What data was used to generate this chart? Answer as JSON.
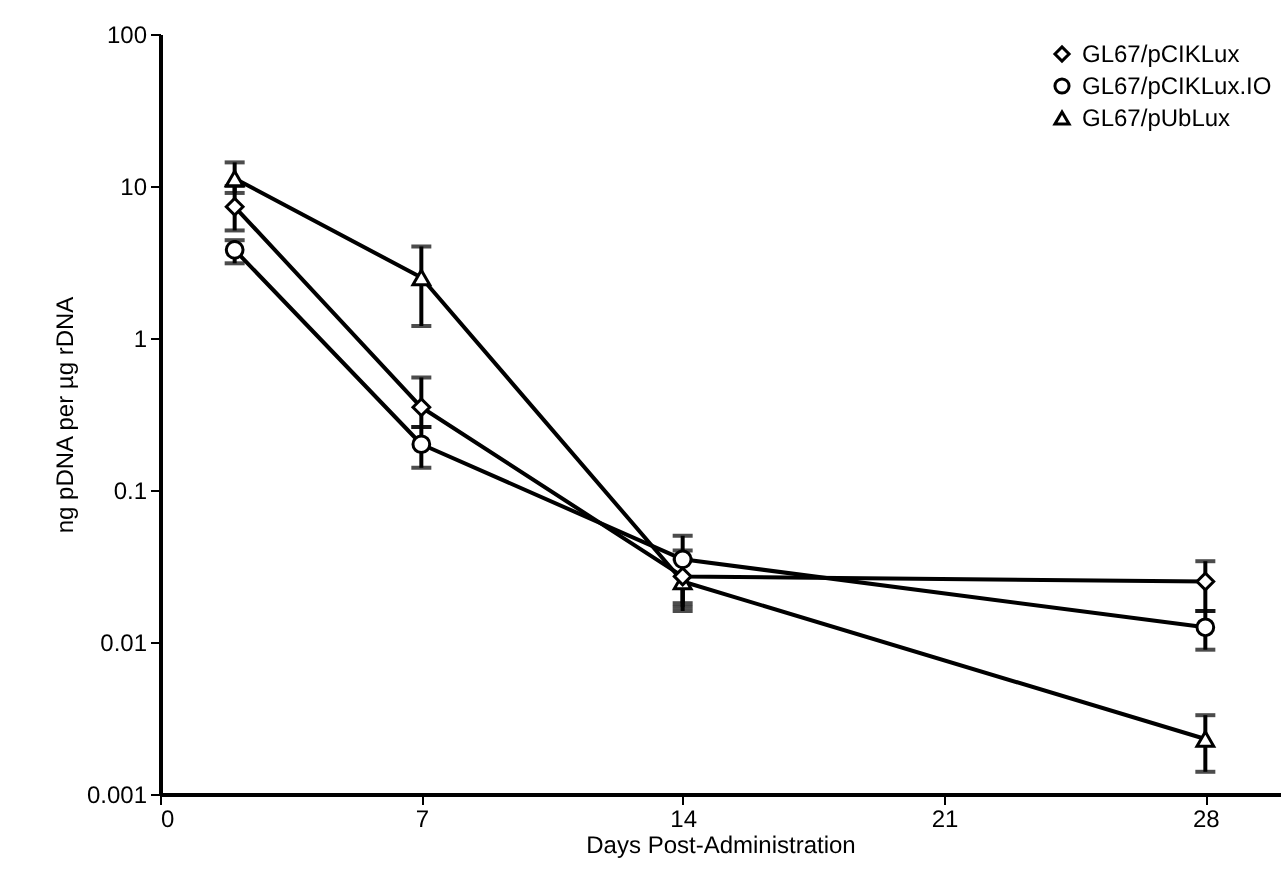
{
  "chart_data": {
    "type": "line",
    "xlabel": "Days Post-Administration",
    "ylabel": "ng pDNA per µg rDNA",
    "x": [
      2,
      7,
      14,
      28
    ],
    "xlim": [
      0,
      30
    ],
    "xticks": [
      0,
      7,
      14,
      21,
      28
    ],
    "ylim": [
      0.001,
      100
    ],
    "yticks": [
      0.001,
      0.01,
      0.1,
      1,
      10,
      100
    ],
    "log": "y",
    "legend": "top right",
    "line_style": "solid",
    "series": [
      {
        "name": "GL67/pCIKLux",
        "color": "#000000",
        "marker": "diamond",
        "values": [
          7.3,
          0.35,
          0.027,
          0.025
        ],
        "errors": [
          [
            5.1,
            10
          ],
          [
            0.26,
            0.55
          ],
          [
            0.017,
            0.04
          ],
          [
            0.016,
            0.034
          ]
        ]
      },
      {
        "name": "GL67/pCIKLux.IO",
        "color": "#000000",
        "marker": "circle",
        "values": [
          3.8,
          0.2,
          0.035,
          0.0125
        ],
        "errors": [
          [
            3.1,
            4.4
          ],
          [
            0.14,
            0.26
          ],
          [
            0.018,
            0.05
          ],
          [
            0.0089,
            0.016
          ]
        ]
      },
      {
        "name": "GL67/pUbLux",
        "color": "#000000",
        "marker": "triangle",
        "values": [
          11.2,
          2.5,
          0.025,
          0.0023
        ],
        "errors": [
          [
            9,
            14.3
          ],
          [
            1.2,
            4
          ],
          [
            0.016,
            0.035
          ],
          [
            0.0014,
            0.0033
          ]
        ]
      }
    ]
  }
}
